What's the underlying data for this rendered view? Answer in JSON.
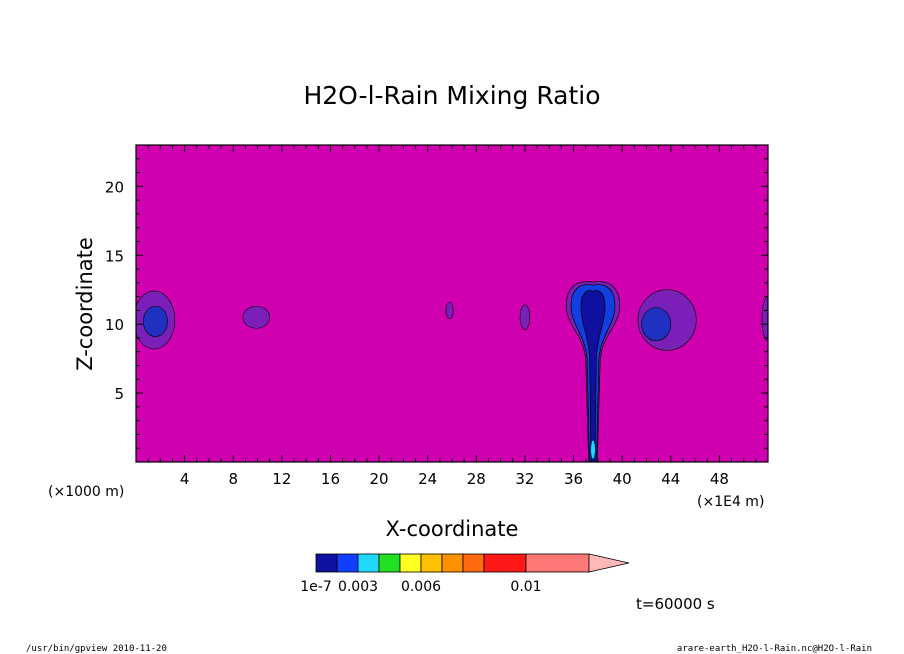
{
  "chart_data": {
    "type": "contour",
    "title": "H2O-l-Rain Mixing Ratio",
    "xlabel": "X-coordinate",
    "ylabel": "Z-coordinate",
    "x_unit_left": "(×1000 m)",
    "x_unit_right": "(×1E4 m)",
    "xlim": [
      0,
      52
    ],
    "ylim": [
      0,
      23
    ],
    "x_ticks": [
      "4",
      "8",
      "12",
      "16",
      "20",
      "24",
      "28",
      "32",
      "36",
      "40",
      "44",
      "48"
    ],
    "x_tick_values": [
      4,
      8,
      12,
      16,
      20,
      24,
      28,
      32,
      36,
      40,
      44,
      48
    ],
    "y_ticks": [
      "5",
      "10",
      "15",
      "20"
    ],
    "y_tick_values": [
      5,
      10,
      15,
      20
    ],
    "background_color": "#d000b0",
    "colorbar": {
      "colors": [
        "#1010a0",
        "#1040ff",
        "#20d8ff",
        "#20e020",
        "#ffff20",
        "#ffc000",
        "#ff9000",
        "#ff6a10",
        "#ff1818",
        "#ff7878",
        "#ffb8b8"
      ],
      "labels": [
        "1e-7",
        "0.003",
        "0.006",
        "0.01"
      ],
      "label_levels": [
        0,
        2,
        5,
        9
      ]
    },
    "time_label": "t=60000 s",
    "regions": [
      {
        "x": 1.5,
        "z": 10.3,
        "rx": 1.7,
        "rz": 2.1,
        "color": "#7a20b8"
      },
      {
        "x": 1.6,
        "z": 10.2,
        "rx": 1.0,
        "rz": 1.1,
        "color": "#2030c0"
      },
      {
        "x": 9.9,
        "z": 10.5,
        "rx": 1.1,
        "rz": 0.8,
        "color": "#7a20b8"
      },
      {
        "x": 25.8,
        "z": 11.0,
        "rx": 0.3,
        "rz": 0.6,
        "color": "#7a20b8"
      },
      {
        "x": 32.0,
        "z": 10.5,
        "rx": 0.4,
        "rz": 0.9,
        "color": "#7a20b8"
      },
      {
        "x": 43.7,
        "z": 10.3,
        "rx": 2.4,
        "rz": 2.2,
        "color": "#7a20b8"
      },
      {
        "x": 42.8,
        "z": 10.0,
        "rx": 1.2,
        "rz": 1.2,
        "color": "#2030c0"
      }
    ],
    "rain_shaft": {
      "x_center": 37.6,
      "top": 13.2,
      "cap_halfwidth": 2.2,
      "neck_z": 7.5,
      "neck_halfwidth": 0.6,
      "base_halfwidth": 0.35,
      "outer_color": "#7a20b8",
      "inner_color": "#1040e0",
      "core_color": "#1010a0",
      "tip_color": "#20d8ff"
    }
  },
  "footer": {
    "left": "/usr/bin/gpview   2010-11-20",
    "right": "arare-earth_H2O-l-Rain.nc@H2O-l-Rain"
  }
}
